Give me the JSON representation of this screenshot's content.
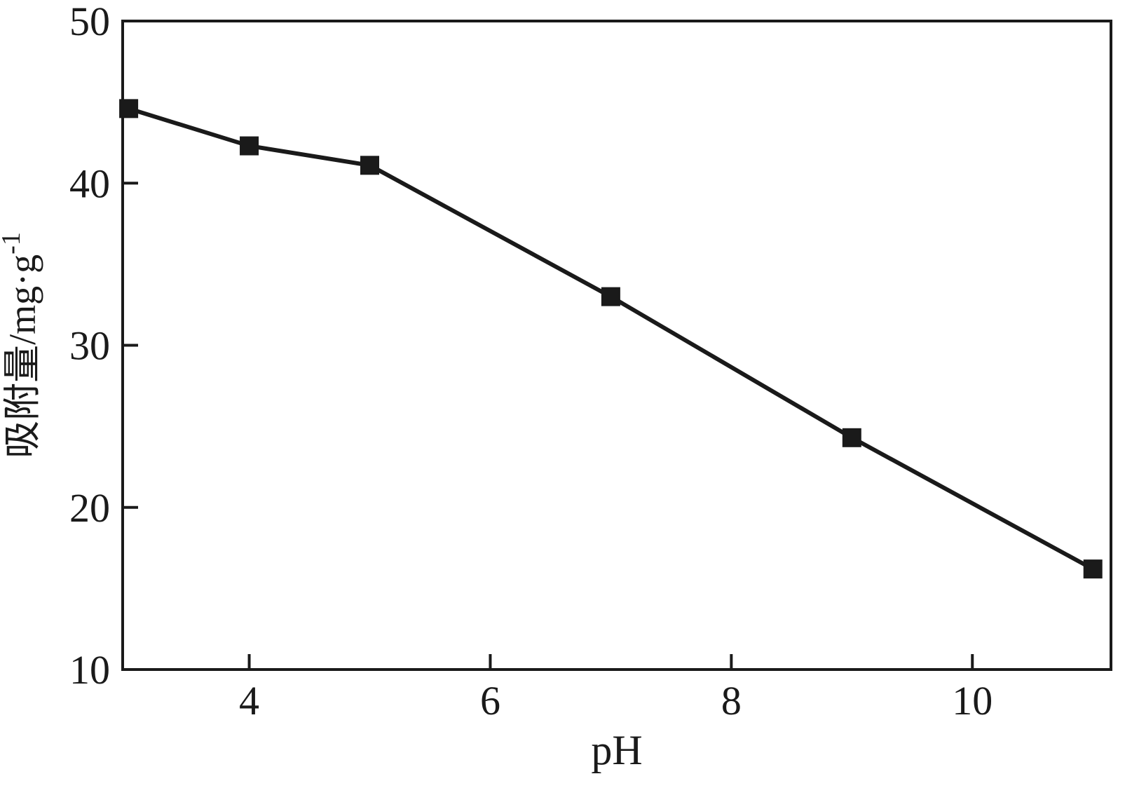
{
  "chart": {
    "background": "#ffffff",
    "axis_color": "#1a1a1a",
    "line_color": "#1a1a1a",
    "marker_color": "#1a1a1a"
  },
  "chart_data": {
    "type": "line",
    "title": "",
    "xlabel": "pH",
    "ylabel": "吸附量/mg·g⁻¹",
    "ylabel_base": "吸附量/mg·g",
    "ylabel_superscript": "-1",
    "series": [
      {
        "name": "吸附量",
        "x": [
          3,
          4,
          5,
          7,
          9,
          11
        ],
        "y": [
          44.6,
          42.3,
          41.1,
          33.0,
          24.3,
          16.2
        ],
        "marker": "square"
      }
    ],
    "xlim": [
      2.95,
      11.15
    ],
    "ylim": [
      10,
      50
    ],
    "xticks": [
      4,
      6,
      8,
      10
    ],
    "yticks": [
      10,
      20,
      30,
      40,
      50
    ],
    "grid": false,
    "legend": "none"
  }
}
